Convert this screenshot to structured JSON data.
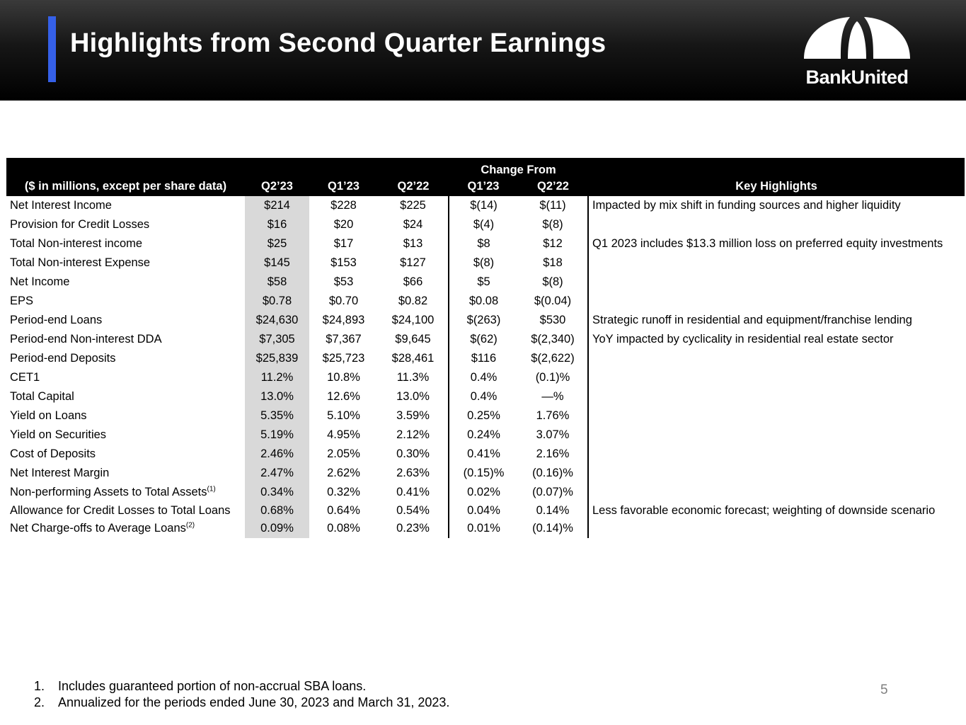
{
  "header": {
    "title": "Highlights from Second Quarter Earnings",
    "brand_name": "BankUnited",
    "colors": {
      "accent": "#3560e8",
      "header_bg": "#000000",
      "highlight_col": "#d9d9d9"
    }
  },
  "table": {
    "group_header": "Change From",
    "columns": [
      "($ in millions, except per share data)",
      "Q2’23",
      "Q1’23",
      "Q2’22",
      "Q1’23",
      "Q2’22",
      "Key Highlights"
    ],
    "rows": [
      {
        "label": "Net Interest Income",
        "sup": "",
        "q2_23": "$214",
        "q1_23": "$228",
        "q2_22": "$225",
        "chg_q1_23": "$(14)",
        "chg_q2_22": "$(11)",
        "highlight": "Impacted by mix shift in funding sources and higher liquidity"
      },
      {
        "label": "Provision for Credit Losses",
        "sup": "",
        "q2_23": "$16",
        "q1_23": "$20",
        "q2_22": "$24",
        "chg_q1_23": "$(4)",
        "chg_q2_22": "$(8)",
        "highlight": ""
      },
      {
        "label": "Total Non-interest income",
        "sup": "",
        "q2_23": "$25",
        "q1_23": "$17",
        "q2_22": "$13",
        "chg_q1_23": "$8",
        "chg_q2_22": "$12",
        "highlight": "Q1 2023 includes $13.3 million loss on preferred equity investments"
      },
      {
        "label": "Total Non-interest Expense",
        "sup": "",
        "q2_23": "$145",
        "q1_23": "$153",
        "q2_22": "$127",
        "chg_q1_23": "$(8)",
        "chg_q2_22": "$18",
        "highlight": ""
      },
      {
        "label": "Net Income",
        "sup": "",
        "q2_23": "$58",
        "q1_23": "$53",
        "q2_22": "$66",
        "chg_q1_23": "$5",
        "chg_q2_22": "$(8)",
        "highlight": ""
      },
      {
        "label": "EPS",
        "sup": "",
        "q2_23": "$0.78",
        "q1_23": "$0.70",
        "q2_22": "$0.82",
        "chg_q1_23": "$0.08",
        "chg_q2_22": "$(0.04)",
        "highlight": ""
      },
      {
        "label": "Period-end Loans",
        "sup": "",
        "q2_23": "$24,630",
        "q1_23": "$24,893",
        "q2_22": "$24,100",
        "chg_q1_23": "$(263)",
        "chg_q2_22": "$530",
        "highlight": "Strategic runoff in residential and equipment/franchise lending"
      },
      {
        "label": "Period-end Non-interest DDA",
        "sup": "",
        "q2_23": "$7,305",
        "q1_23": "$7,367",
        "q2_22": "$9,645",
        "chg_q1_23": "$(62)",
        "chg_q2_22": "$(2,340)",
        "highlight": "YoY impacted by cyclicality in residential real estate sector"
      },
      {
        "label": "Period-end Deposits",
        "sup": "",
        "q2_23": "$25,839",
        "q1_23": "$25,723",
        "q2_22": "$28,461",
        "chg_q1_23": "$116",
        "chg_q2_22": "$(2,622)",
        "highlight": ""
      },
      {
        "label": "CET1",
        "sup": "",
        "q2_23": "11.2%",
        "q1_23": "10.8%",
        "q2_22": "11.3%",
        "chg_q1_23": "0.4%",
        "chg_q2_22": "(0.1)%",
        "highlight": ""
      },
      {
        "label": "Total Capital",
        "sup": "",
        "q2_23": "13.0%",
        "q1_23": "12.6%",
        "q2_22": "13.0%",
        "chg_q1_23": "0.4%",
        "chg_q2_22": "—%",
        "highlight": ""
      },
      {
        "label": "Yield on Loans",
        "sup": "",
        "q2_23": "5.35%",
        "q1_23": "5.10%",
        "q2_22": "3.59%",
        "chg_q1_23": "0.25%",
        "chg_q2_22": "1.76%",
        "highlight": ""
      },
      {
        "label": "Yield on Securities",
        "sup": "",
        "q2_23": "5.19%",
        "q1_23": "4.95%",
        "q2_22": "2.12%",
        "chg_q1_23": "0.24%",
        "chg_q2_22": "3.07%",
        "highlight": ""
      },
      {
        "label": "Cost of Deposits",
        "sup": "",
        "q2_23": "2.46%",
        "q1_23": "2.05%",
        "q2_22": "0.30%",
        "chg_q1_23": "0.41%",
        "chg_q2_22": "2.16%",
        "highlight": ""
      },
      {
        "label": "Net Interest Margin",
        "sup": "",
        "q2_23": "2.47%",
        "q1_23": "2.62%",
        "q2_22": "2.63%",
        "chg_q1_23": "(0.15)%",
        "chg_q2_22": "(0.16)%",
        "highlight": ""
      },
      {
        "label": "Non-performing Assets to Total Assets",
        "sup": "(1)",
        "q2_23": "0.34%",
        "q1_23": "0.32%",
        "q2_22": "0.41%",
        "chg_q1_23": "0.02%",
        "chg_q2_22": "(0.07)%",
        "highlight": ""
      },
      {
        "label": "Allowance for Credit Losses to Total Loans",
        "sup": "",
        "q2_23": "0.68%",
        "q1_23": "0.64%",
        "q2_22": "0.54%",
        "chg_q1_23": "0.04%",
        "chg_q2_22": "0.14%",
        "highlight": "Less favorable economic forecast; weighting of downside scenario"
      },
      {
        "label": "Net Charge-offs to Average Loans",
        "sup": "(2)",
        "q2_23": "0.09%",
        "q1_23": "0.08%",
        "q2_22": "0.23%",
        "chg_q1_23": "0.01%",
        "chg_q2_22": "(0.14)%",
        "highlight": ""
      }
    ]
  },
  "footnotes": [
    {
      "num": "1.",
      "text": "Includes guaranteed portion of non-accrual SBA loans."
    },
    {
      "num": "2.",
      "text": "Annualized for the periods ended June 30, 2023 and March 31, 2023."
    }
  ],
  "page_number": "5"
}
